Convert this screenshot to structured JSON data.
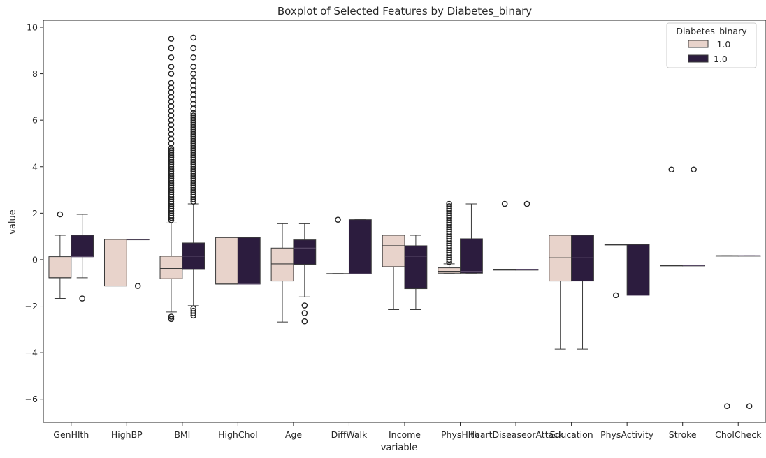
{
  "chart_data": {
    "type": "boxplot",
    "title": "Boxplot of Selected Features by Diabetes_binary",
    "xlabel": "variable",
    "ylabel": "value",
    "ylim": [
      -7,
      10.3
    ],
    "yticks": [
      -6,
      -4,
      -2,
      0,
      2,
      4,
      6,
      8,
      10
    ],
    "categories": [
      "GenHlth",
      "HighBP",
      "BMI",
      "HighChol",
      "Age",
      "DiffWalk",
      "Income",
      "PhysHlth",
      "HeartDiseaseorAttack",
      "Education",
      "PhysActivity",
      "Stroke",
      "CholCheck"
    ],
    "legend": {
      "title": "Diabetes_binary",
      "placement": "top-right"
    },
    "colors": {
      "neg": "#e8d3cb",
      "pos": "#2c1c3e",
      "line": "#3a3a3a"
    },
    "series": [
      {
        "name": "-1.0",
        "boxes": [
          {
            "q1": -0.78,
            "median": -0.78,
            "q3": 0.13,
            "wlo": -1.67,
            "whi": 1.05,
            "outliers": [
              1.95
            ]
          },
          {
            "q1": -1.13,
            "median": -1.13,
            "q3": 0.87,
            "wlo": -1.13,
            "whi": 0.87,
            "outliers": []
          },
          {
            "q1": -0.82,
            "median": -0.38,
            "q3": 0.15,
            "wlo": -2.25,
            "whi": 1.58,
            "outliers": [
              -2.45,
              -2.55,
              1.7,
              1.8,
              1.9,
              2.0,
              2.1,
              2.2,
              2.3,
              2.4,
              2.5,
              2.6,
              2.7,
              2.8,
              2.9,
              3.0,
              3.1,
              3.2,
              3.3,
              3.4,
              3.5,
              3.6,
              3.7,
              3.8,
              3.9,
              4.0,
              4.1,
              4.2,
              4.3,
              4.4,
              4.5,
              4.6,
              4.7,
              4.8,
              5.0,
              5.2,
              5.4,
              5.6,
              5.8,
              6.0,
              6.2,
              6.4,
              6.6,
              6.8,
              7.0,
              7.2,
              7.4,
              7.6,
              8.0,
              8.3,
              8.7,
              9.1,
              9.5
            ]
          },
          {
            "q1": -1.05,
            "median": -1.05,
            "q3": 0.95,
            "wlo": -1.05,
            "whi": 0.95,
            "outliers": []
          },
          {
            "q1": -0.92,
            "median": -0.18,
            "q3": 0.5,
            "wlo": -2.68,
            "whi": 1.55,
            "outliers": []
          },
          {
            "q1": -0.6,
            "median": -0.6,
            "q3": -0.6,
            "wlo": -0.6,
            "whi": -0.6,
            "outliers": [
              1.72
            ]
          },
          {
            "q1": -0.3,
            "median": 0.6,
            "q3": 1.05,
            "wlo": -2.15,
            "whi": 1.05,
            "outliers": []
          },
          {
            "q1": -0.58,
            "median": -0.5,
            "q3": -0.35,
            "wlo": -0.58,
            "whi": -0.18,
            "outliers": [
              -0.1,
              0.0,
              0.1,
              0.2,
              0.3,
              0.4,
              0.5,
              0.6,
              0.7,
              0.8,
              0.9,
              1.0,
              1.1,
              1.2,
              1.3,
              1.4,
              1.5,
              1.6,
              1.7,
              1.8,
              1.9,
              2.0,
              2.1,
              2.2,
              2.3,
              2.4
            ]
          },
          {
            "q1": -0.43,
            "median": -0.43,
            "q3": -0.43,
            "wlo": -0.43,
            "whi": -0.43,
            "outliers": [
              2.4
            ]
          },
          {
            "q1": -0.92,
            "median": 0.08,
            "q3": 1.05,
            "wlo": -3.85,
            "whi": 1.05,
            "outliers": []
          },
          {
            "q1": 0.65,
            "median": 0.65,
            "q3": 0.65,
            "wlo": 0.65,
            "whi": 0.65,
            "outliers": [
              -1.53
            ]
          },
          {
            "q1": -0.25,
            "median": -0.25,
            "q3": -0.25,
            "wlo": -0.25,
            "whi": -0.25,
            "outliers": [
              3.88
            ]
          },
          {
            "q1": 0.17,
            "median": 0.17,
            "q3": 0.17,
            "wlo": 0.17,
            "whi": 0.17,
            "outliers": [
              -6.3
            ]
          }
        ]
      },
      {
        "name": "1.0",
        "boxes": [
          {
            "q1": 0.13,
            "median": 0.13,
            "q3": 1.05,
            "wlo": -0.78,
            "whi": 1.95,
            "outliers": [
              -1.67
            ]
          },
          {
            "q1": 0.87,
            "median": 0.87,
            "q3": 0.87,
            "wlo": 0.87,
            "whi": 0.87,
            "outliers": [
              -1.13
            ]
          },
          {
            "q1": -0.42,
            "median": 0.15,
            "q3": 0.72,
            "wlo": -1.98,
            "whi": 2.4,
            "outliers": [
              -2.1,
              -2.2,
              -2.3,
              -2.4,
              2.5,
              2.6,
              2.7,
              2.8,
              2.9,
              3.0,
              3.1,
              3.2,
              3.3,
              3.4,
              3.5,
              3.6,
              3.7,
              3.8,
              3.9,
              4.0,
              4.1,
              4.2,
              4.3,
              4.4,
              4.5,
              4.6,
              4.7,
              4.8,
              4.9,
              5.0,
              5.1,
              5.2,
              5.3,
              5.4,
              5.5,
              5.6,
              5.7,
              5.8,
              5.9,
              6.0,
              6.1,
              6.2,
              6.3,
              6.5,
              6.7,
              6.9,
              7.1,
              7.3,
              7.5,
              7.7,
              8.0,
              8.3,
              8.7,
              9.1,
              9.55
            ]
          },
          {
            "q1": -1.05,
            "median": -1.05,
            "q3": 0.95,
            "wlo": -1.05,
            "whi": 0.95,
            "outliers": []
          },
          {
            "q1": -0.2,
            "median": 0.5,
            "q3": 0.85,
            "wlo": -1.6,
            "whi": 1.55,
            "outliers": [
              -1.97,
              -2.3,
              -2.65
            ]
          },
          {
            "q1": -0.6,
            "median": -0.6,
            "q3": 1.72,
            "wlo": -0.6,
            "whi": 1.72,
            "outliers": []
          },
          {
            "q1": -1.25,
            "median": 0.15,
            "q3": 0.6,
            "wlo": -2.15,
            "whi": 1.05,
            "outliers": []
          },
          {
            "q1": -0.58,
            "median": -0.5,
            "q3": 0.9,
            "wlo": -0.58,
            "whi": 2.4,
            "outliers": []
          },
          {
            "q1": -0.43,
            "median": -0.43,
            "q3": -0.43,
            "wlo": -0.43,
            "whi": -0.43,
            "outliers": [
              2.4
            ]
          },
          {
            "q1": -0.92,
            "median": 0.08,
            "q3": 1.05,
            "wlo": -3.85,
            "whi": 1.05,
            "outliers": []
          },
          {
            "q1": -1.53,
            "median": -1.53,
            "q3": 0.65,
            "wlo": -1.53,
            "whi": 0.65,
            "outliers": []
          },
          {
            "q1": -0.25,
            "median": -0.25,
            "q3": -0.25,
            "wlo": -0.25,
            "whi": -0.25,
            "outliers": [
              3.88
            ]
          },
          {
            "q1": 0.17,
            "median": 0.17,
            "q3": 0.17,
            "wlo": 0.17,
            "whi": 0.17,
            "outliers": [
              -6.3
            ]
          }
        ]
      }
    ]
  }
}
